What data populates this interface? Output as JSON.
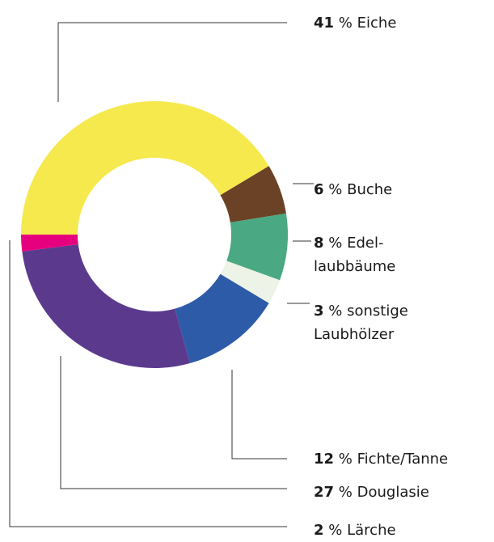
{
  "chart_data": {
    "type": "donut",
    "categories": [
      "Eiche",
      "Buche",
      "Edel-\nlaubbäume",
      "sonstige\nLaubhölzer",
      "Fichte/Tanne",
      "Douglasie",
      "Lärche"
    ],
    "values": [
      41,
      6,
      8,
      3,
      12,
      27,
      2
    ],
    "unit": "%",
    "colors": [
      "#f5e94e",
      "#6b4226",
      "#4aa982",
      "#edf3e6",
      "#2e5ba8",
      "#5b3a8e",
      "#e6007e"
    ]
  }
}
